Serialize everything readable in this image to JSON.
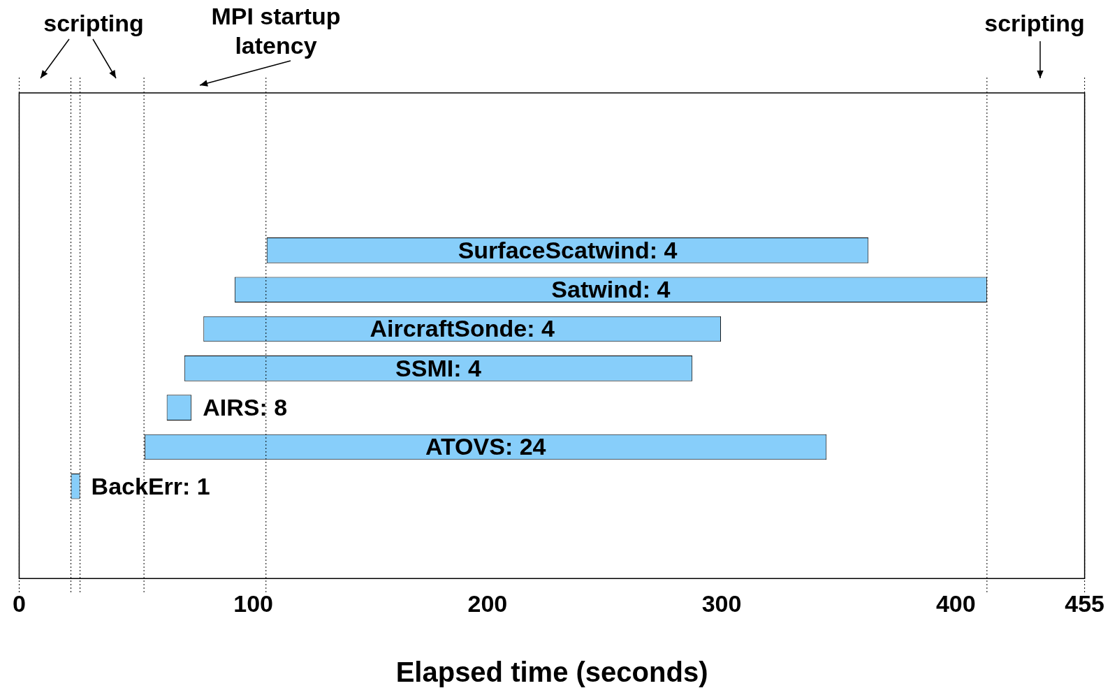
{
  "chart_data": {
    "type": "bar",
    "orientation": "horizontal",
    "categories": [
      "SurfaceScatwind: 4",
      "Satwind: 4",
      "AircraftSonde: 4",
      "SSMI: 4",
      "AIRS: 8",
      "ATOVS: 24",
      "BackErr: 1"
    ],
    "base": [
      105.7,
      92,
      78.7,
      70.5,
      63,
      53.6,
      22.1
    ],
    "values": [
      257,
      321.3,
      221,
      217,
      10.6,
      291.2,
      3.9
    ],
    "color": "#87cefa",
    "xlabel": "Elapsed time (seconds)",
    "xlim": [
      0,
      455
    ],
    "xticks": [
      0,
      100,
      200,
      300,
      400,
      455
    ],
    "grid": false,
    "legend": false,
    "tick_labels": "x",
    "ref_lines": [
      {
        "axis": "x",
        "value": 0,
        "line_style": "dotted"
      },
      {
        "axis": "x",
        "value": 22.1,
        "line_style": "dotted"
      },
      {
        "axis": "x",
        "value": 26,
        "line_style": "dotted"
      },
      {
        "axis": "x",
        "value": 53.3,
        "line_style": "dotted"
      },
      {
        "axis": "x",
        "value": 105.4,
        "line_style": "dotted"
      },
      {
        "axis": "x",
        "value": 413.3,
        "line_style": "dotted"
      },
      {
        "axis": "x",
        "value": 455,
        "line_style": "dotted"
      }
    ],
    "annotations": [
      "scripting",
      "MPI startup\nlatency",
      "scripting"
    ]
  }
}
